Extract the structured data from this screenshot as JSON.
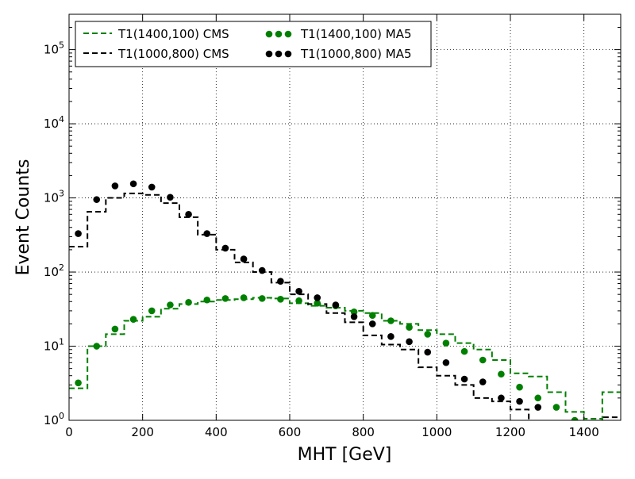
{
  "chart_data": {
    "type": "line",
    "title": "",
    "xlabel": "MHT [GeV]",
    "ylabel": "Event Counts",
    "xlim": [
      0,
      1500
    ],
    "ylim": [
      1,
      300000
    ],
    "yscale": "log",
    "grid": true,
    "legend_position": "top-left",
    "x_ticks": [
      0,
      200,
      400,
      600,
      800,
      1000,
      1200,
      1400
    ],
    "x_tick_labels": [
      "0",
      "200",
      "400",
      "600",
      "800",
      "1000",
      "1200",
      "1400"
    ],
    "y_ticks": [
      1,
      10,
      100,
      1000,
      10000,
      100000
    ],
    "y_tick_labels": [
      {
        "base": "10",
        "exp": "0"
      },
      {
        "base": "10",
        "exp": "1"
      },
      {
        "base": "10",
        "exp": "2"
      },
      {
        "base": "10",
        "exp": "3"
      },
      {
        "base": "10",
        "exp": "4"
      },
      {
        "base": "10",
        "exp": "5"
      }
    ],
    "bin_edges": [
      0,
      50,
      100,
      150,
      200,
      250,
      300,
      350,
      400,
      450,
      500,
      550,
      600,
      650,
      700,
      750,
      800,
      850,
      900,
      950,
      1000,
      1050,
      1100,
      1150,
      1200,
      1250,
      1300,
      1350,
      1400,
      1450,
      1500
    ],
    "series": [
      {
        "name": "T1(1400,100) CMS",
        "kind": "step",
        "color": "#008000",
        "values": [
          2.7,
          10.0,
          14.5,
          22.0,
          25.0,
          32.0,
          37.0,
          40.0,
          42.0,
          43.0,
          45.0,
          44.0,
          38.0,
          35.0,
          33.0,
          30.0,
          28.0,
          22.0,
          20.0,
          16.5,
          14.5,
          11.0,
          9.0,
          6.5,
          4.3,
          3.9,
          2.4,
          1.3,
          1.05,
          2.4
        ]
      },
      {
        "name": "T1(1000,800) CMS",
        "kind": "step",
        "color": "#000000",
        "values": [
          220,
          650,
          1000,
          1150,
          1100,
          850,
          550,
          320,
          200,
          135,
          100,
          72,
          50,
          37,
          28,
          21,
          14,
          10.5,
          9.0,
          5.2,
          4.0,
          3.0,
          2.0,
          1.8,
          1.4,
          0.9,
          0.9,
          0.9,
          0.9,
          1.1
        ]
      },
      {
        "name": "T1(1400,100) MA5",
        "kind": "markers",
        "color": "#008000",
        "x": [
          25,
          75,
          125,
          175,
          225,
          275,
          325,
          375,
          425,
          475,
          525,
          575,
          625,
          675,
          725,
          775,
          825,
          875,
          925,
          975,
          1025,
          1075,
          1125,
          1175,
          1225,
          1275,
          1325,
          1375
        ],
        "values": [
          3.2,
          10.0,
          17.0,
          23.0,
          30.0,
          36.0,
          39.0,
          42.0,
          44.0,
          45.0,
          44.0,
          43.0,
          41.0,
          38.0,
          35.0,
          29.0,
          26.0,
          22.0,
          18.0,
          14.5,
          11.0,
          8.5,
          6.5,
          4.2,
          2.8,
          2.0,
          1.5,
          1.0
        ]
      },
      {
        "name": "T1(1000,800) MA5",
        "kind": "markers",
        "color": "#000000",
        "x": [
          25,
          75,
          125,
          175,
          225,
          275,
          325,
          375,
          425,
          475,
          525,
          575,
          625,
          675,
          725,
          775,
          825,
          875,
          925,
          975,
          1025,
          1075,
          1125,
          1175,
          1225,
          1275
        ],
        "values": [
          330,
          950,
          1450,
          1550,
          1400,
          1020,
          600,
          330,
          210,
          150,
          105,
          75,
          55,
          45,
          36,
          25,
          20,
          13.5,
          11.5,
          8.3,
          6.0,
          3.6,
          3.3,
          2.0,
          1.8,
          1.5
        ]
      }
    ]
  }
}
